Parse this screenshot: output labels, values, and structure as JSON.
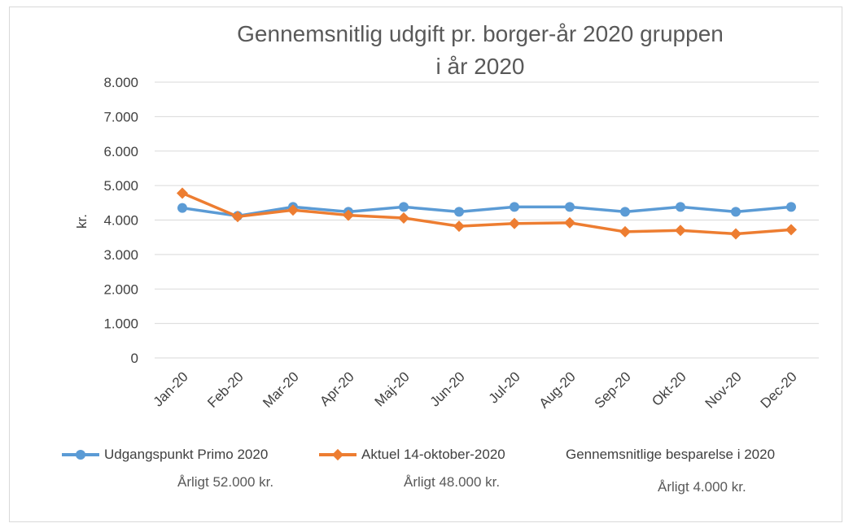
{
  "chart_data": {
    "type": "line",
    "title_line1": "Gennemsnitlig udgift pr. borger-år 2020 gruppen",
    "title_line2": "i år 2020",
    "ylabel": "kr.",
    "ylim": [
      0,
      8000
    ],
    "yticks": [
      "0",
      "1.000",
      "2.000",
      "3.000",
      "4.000",
      "5.000",
      "6.000",
      "7.000",
      "8.000"
    ],
    "ytick_values": [
      0,
      1000,
      2000,
      3000,
      4000,
      5000,
      6000,
      7000,
      8000
    ],
    "categories": [
      "Jan-20",
      "Feb-20",
      "Mar-20",
      "Apr-20",
      "Maj-20",
      "Jun-20",
      "Jul-20",
      "Aug-20",
      "Sep-20",
      "Okt-20",
      "Nov-20",
      "Dec-20"
    ],
    "grid": true,
    "legend_position": "bottom",
    "series": [
      {
        "name": "Udgangspunkt Primo 2020",
        "color": "#5b9bd5",
        "marker": "circle",
        "values": [
          4350,
          4120,
          4380,
          4240,
          4380,
          4240,
          4380,
          4380,
          4240,
          4380,
          4240,
          4380
        ]
      },
      {
        "name": "Aktuel 14-oktober-2020",
        "color": "#ed7d31",
        "marker": "diamond",
        "values": [
          4780,
          4100,
          4290,
          4140,
          4060,
          3820,
          3900,
          3920,
          3660,
          3700,
          3600,
          3720
        ]
      }
    ]
  },
  "legend_extra": "Gennemsnitlige besparelse i 2020",
  "notes": {
    "series1": "Årligt 52.000 kr.",
    "series2": "Årligt 48.000 kr.",
    "savings": "Årligt 4.000 kr."
  }
}
